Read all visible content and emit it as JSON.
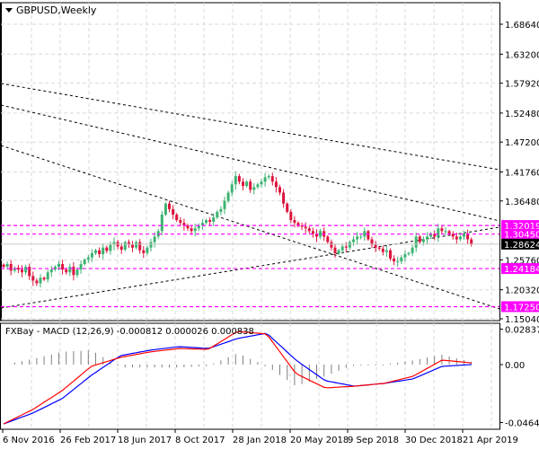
{
  "header": {
    "symbol_title": "GBPUSD,Weekly",
    "menu_icon": "triangle-down-icon"
  },
  "colors": {
    "bull": "#3cb371",
    "bear": "#dc143c",
    "level": "#ff00ff",
    "macd_main": "#ff0000",
    "macd_signal": "#0000ff",
    "histogram": "#808080",
    "grid": "#d9d9d9"
  },
  "chart_data": [
    {
      "type": "candlestick",
      "title": "GBPUSD,Weekly",
      "ylim": [
        1.1504,
        1.6864
      ],
      "y_ticks": [
        "1.68640",
        "1.63200",
        "1.57920",
        "1.52480",
        "1.47200",
        "1.41760",
        "1.36480",
        "1.25760",
        "1.20320",
        "1.15040"
      ],
      "x_ticks": [
        "6 Nov 2016",
        "26 Feb 2017",
        "18 Jun 2017",
        "8 Oct 2017",
        "28 Jan 2018",
        "20 May 2018",
        "9 Sep 2018",
        "30 Dec 2018",
        "21 Apr 2019"
      ],
      "weekly_closes": [
        1.245,
        1.25,
        1.238,
        1.243,
        1.24,
        1.235,
        1.245,
        1.228,
        1.22,
        1.215,
        1.225,
        1.222,
        1.235,
        1.24,
        1.245,
        1.25,
        1.24,
        1.235,
        1.245,
        1.23,
        1.24,
        1.25,
        1.258,
        1.262,
        1.27,
        1.275,
        1.268,
        1.28,
        1.274,
        1.285,
        1.29,
        1.282,
        1.276,
        1.29,
        1.285,
        1.28,
        1.29,
        1.275,
        1.27,
        1.28,
        1.29,
        1.3,
        1.31,
        1.34,
        1.36,
        1.35,
        1.34,
        1.33,
        1.325,
        1.32,
        1.315,
        1.31,
        1.315,
        1.32,
        1.325,
        1.33,
        1.327,
        1.335,
        1.345,
        1.35,
        1.365,
        1.38,
        1.395,
        1.41,
        1.4,
        1.392,
        1.4,
        1.385,
        1.39,
        1.395,
        1.4,
        1.408,
        1.41,
        1.4,
        1.39,
        1.38,
        1.36,
        1.345,
        1.33,
        1.325,
        1.32,
        1.318,
        1.315,
        1.31,
        1.305,
        1.3,
        1.31,
        1.3,
        1.29,
        1.28,
        1.27,
        1.275,
        1.282,
        1.28,
        1.29,
        1.295,
        1.3,
        1.3,
        1.31,
        1.295,
        1.285,
        1.28,
        1.278,
        1.272,
        1.275,
        1.26,
        1.255,
        1.255,
        1.262,
        1.268,
        1.27,
        1.28,
        1.3,
        1.29,
        1.295,
        1.3,
        1.305,
        1.3,
        1.315,
        1.31,
        1.31,
        1.305,
        1.3,
        1.295,
        1.3,
        1.305,
        1.295,
        1.286
      ],
      "levels": [
        {
          "price": "1.32019"
        },
        {
          "price": "1.30450"
        },
        {
          "price": "1.24184"
        },
        {
          "price": "1.17250"
        }
      ],
      "current_price": "1.28624",
      "trendlines": [
        {
          "from_price": 1.5786,
          "to_price": 1.4217
        },
        {
          "from_price": 1.5394,
          "to_price": 1.3286
        },
        {
          "from_price": 1.4658,
          "to_price": 1.1684
        },
        {
          "from_price": 1.17,
          "to_price": 1.3171
        }
      ]
    },
    {
      "type": "line",
      "title": "FXBay - MACD (12,26,9) -0.000812 0.000026 0.000838",
      "ylim": [
        -0.04644,
        0.028374
      ],
      "y_ticks": [
        "0.028374",
        "0.00",
        "-0.04644"
      ],
      "series": [
        {
          "values": [
            -0.0475,
            -0.036,
            -0.0209,
            -0.0014,
            0.0058,
            0.0101,
            0.0129,
            0.0122,
            0.0266,
            0.0245,
            -0.0072,
            -0.0187,
            -0.0173,
            -0.0151,
            -0.0094,
            0.0036,
            0.0014
          ]
        },
        {
          "values": [
            -0.0475,
            -0.0388,
            -0.0273,
            -0.0086,
            0.0072,
            0.0115,
            0.0144,
            0.0129,
            0.0209,
            0.0252,
            0.0036,
            -0.0129,
            -0.0173,
            -0.0151,
            -0.0115,
            -0.0014,
            0.0
          ]
        }
      ]
    }
  ]
}
